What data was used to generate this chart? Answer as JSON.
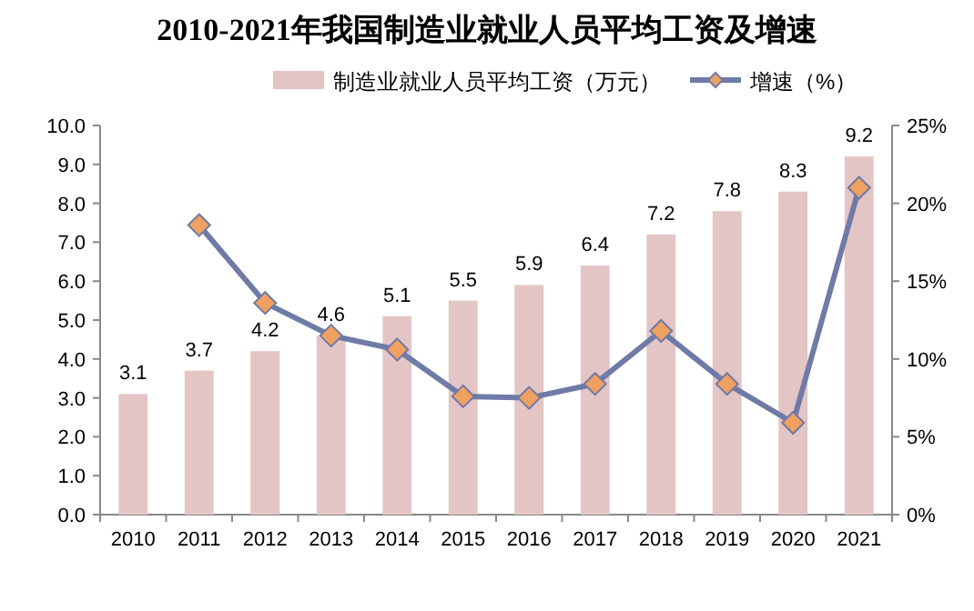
{
  "chart_data": {
    "type": "bar",
    "title": "2010-2021年我国制造业就业人员平均工资及增速",
    "categories": [
      "2010",
      "2011",
      "2012",
      "2013",
      "2014",
      "2015",
      "2016",
      "2017",
      "2018",
      "2019",
      "2020",
      "2021"
    ],
    "series": [
      {
        "name": "制造业就业人员平均工资（万元）",
        "color": "#e3c5c5",
        "values": [
          3.1,
          3.7,
          4.2,
          4.6,
          5.1,
          5.5,
          5.9,
          6.4,
          7.2,
          7.8,
          8.3,
          9.2
        ],
        "value_labels": [
          "3.1",
          "3.7",
          "4.2",
          "4.6",
          "5.1",
          "5.5",
          "5.9",
          "6.4",
          "7.2",
          "7.8",
          "8.3",
          "9.2"
        ]
      },
      {
        "name": "增速（%）",
        "type": "line",
        "axis": "y2",
        "color": "#6f7ba6",
        "marker": "diamond",
        "values": [
          null,
          18.6,
          13.6,
          11.5,
          10.6,
          7.6,
          7.5,
          8.4,
          11.8,
          8.4,
          5.9,
          21.0
        ]
      }
    ],
    "ylim": [
      0,
      10
    ],
    "yticks": [
      {
        "value": 0,
        "label": "0.0"
      },
      {
        "value": 1,
        "label": "1.0"
      },
      {
        "value": 2,
        "label": "2.0"
      },
      {
        "value": 3,
        "label": "3.0"
      },
      {
        "value": 4,
        "label": "4.0"
      },
      {
        "value": 5,
        "label": "5.0"
      },
      {
        "value": 6,
        "label": "6.0"
      },
      {
        "value": 7,
        "label": "7.0"
      },
      {
        "value": 8,
        "label": "8.0"
      },
      {
        "value": 9,
        "label": "9.0"
      },
      {
        "value": 10,
        "label": "10.0"
      }
    ],
    "y2lim": [
      0,
      25
    ],
    "y2ticks": [
      {
        "value": 0,
        "label": "0%"
      },
      {
        "value": 5,
        "label": "5%"
      },
      {
        "value": 10,
        "label": "10%"
      },
      {
        "value": 15,
        "label": "15%"
      },
      {
        "value": 20,
        "label": "20%"
      },
      {
        "value": 25,
        "label": "25%"
      }
    ],
    "legend": "top",
    "grid": false
  }
}
